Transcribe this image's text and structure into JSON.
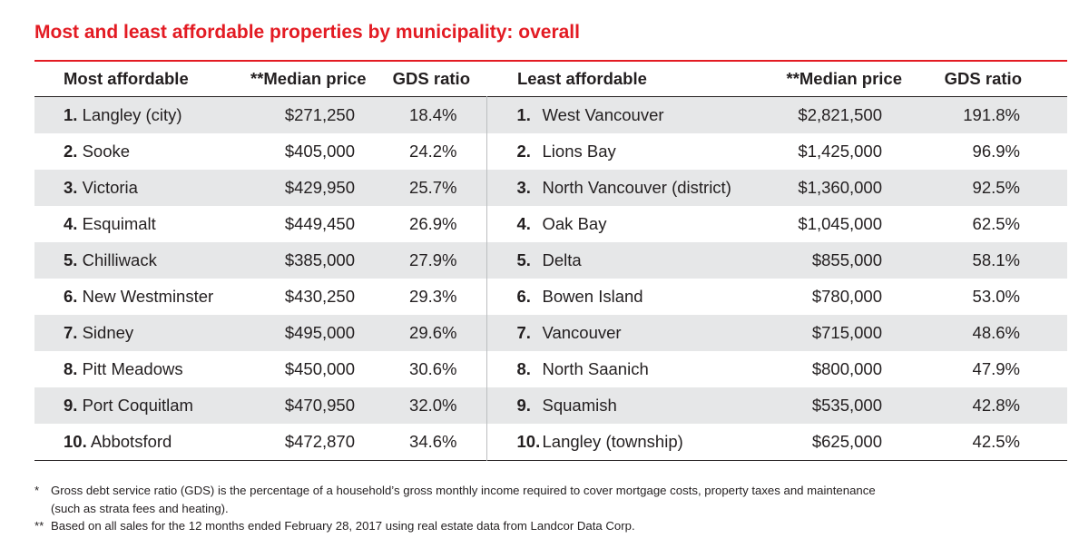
{
  "title": "Most and least affordable properties by municipality: overall",
  "headers": {
    "most_affordable": "Most affordable",
    "median_price": "**Median price",
    "gds_ratio": "GDS ratio",
    "least_affordable": "Least affordable",
    "median_price_2": "**Median price",
    "gds_ratio_2": "GDS ratio"
  },
  "most_affordable": [
    {
      "rank": "1.",
      "name": "Langley (city)",
      "price": "$271,250",
      "gds": "18.4%"
    },
    {
      "rank": "2.",
      "name": "Sooke",
      "price": "$405,000",
      "gds": "24.2%"
    },
    {
      "rank": "3.",
      "name": "Victoria",
      "price": "$429,950",
      "gds": "25.7%"
    },
    {
      "rank": "4.",
      "name": "Esquimalt",
      "price": "$449,450",
      "gds": "26.9%"
    },
    {
      "rank": "5.",
      "name": "Chilliwack",
      "price": "$385,000",
      "gds": "27.9%"
    },
    {
      "rank": "6.",
      "name": "New Westminster",
      "price": "$430,250",
      "gds": "29.3%"
    },
    {
      "rank": "7.",
      "name": "Sidney",
      "price": "$495,000",
      "gds": "29.6%"
    },
    {
      "rank": "8.",
      "name": "Pitt Meadows",
      "price": "$450,000",
      "gds": "30.6%"
    },
    {
      "rank": "9.",
      "name": "Port Coquitlam",
      "price": "$470,950",
      "gds": "32.0%"
    },
    {
      "rank": "10.",
      "name": "Abbotsford",
      "price": "$472,870",
      "gds": "34.6%"
    }
  ],
  "least_affordable": [
    {
      "rank": "1.",
      "name": "West Vancouver",
      "price": "$2,821,500",
      "gds": "191.8%"
    },
    {
      "rank": "2.",
      "name": "Lions Bay",
      "price": "$1,425,000",
      "gds": "96.9%"
    },
    {
      "rank": "3.",
      "name": "North Vancouver (district)",
      "price": "$1,360,000",
      "gds": "92.5%"
    },
    {
      "rank": "4.",
      "name": "Oak Bay",
      "price": "$1,045,000",
      "gds": "62.5%"
    },
    {
      "rank": "5.",
      "name": "Delta",
      "price": "$855,000",
      "gds": "58.1%"
    },
    {
      "rank": "6.",
      "name": "Bowen Island",
      "price": "$780,000",
      "gds": "53.0%"
    },
    {
      "rank": "7.",
      "name": "Vancouver",
      "price": "$715,000",
      "gds": "48.6%"
    },
    {
      "rank": "8.",
      "name": "North Saanich",
      "price": "$800,000",
      "gds": "47.9%"
    },
    {
      "rank": "9.",
      "name": "Squamish",
      "price": "$535,000",
      "gds": "42.8%"
    },
    {
      "rank": "10.",
      "name": "Langley (township)",
      "price": "$625,000",
      "gds": "42.5%"
    }
  ],
  "footnotes": {
    "note1_mark": "*",
    "note1_line1": "Gross debt service ratio (GDS) is the percentage of a household’s gross monthly income required to cover mortgage costs, property taxes and maintenance",
    "note1_line2": "(such as strata fees and heating).",
    "note2_mark": "**",
    "note2_text": "Based on all sales for the 12 months ended February 28, 2017 using real estate data from Landcor Data Corp."
  },
  "colors": {
    "accent": "#e31b23",
    "row_shade": "#e6e7e8",
    "text": "#231f20"
  }
}
